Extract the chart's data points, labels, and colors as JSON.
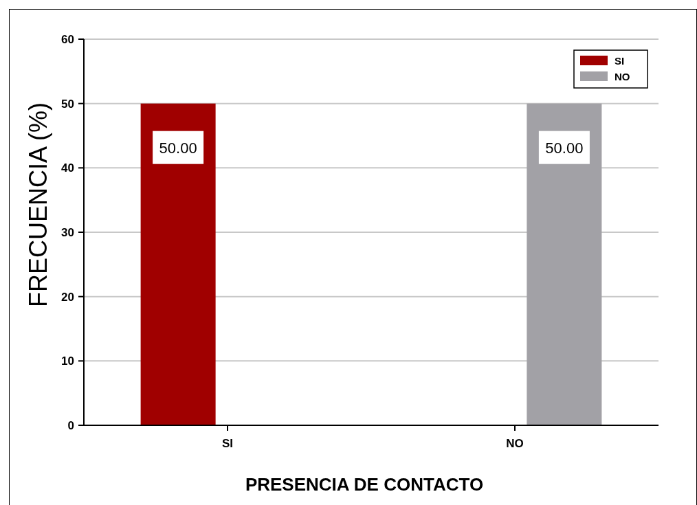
{
  "chart_data": {
    "type": "bar",
    "xlabel": "PRESENCIA DE CONTACTO",
    "ylabel": "FRECUENCIA (%)",
    "categories": [
      "SI",
      "NO"
    ],
    "series": [
      {
        "name": "SI",
        "color": "#a00000",
        "values": [
          50,
          null
        ],
        "value_labels": [
          "50.00",
          null
        ]
      },
      {
        "name": "NO",
        "color": "#a2a1a6",
        "values": [
          null,
          50
        ],
        "value_labels": [
          null,
          "50.00"
        ]
      }
    ],
    "ylim": [
      0,
      60
    ],
    "yticks": [
      0,
      10,
      20,
      30,
      40,
      50,
      60
    ],
    "grid": "y",
    "legend": "top right"
  }
}
